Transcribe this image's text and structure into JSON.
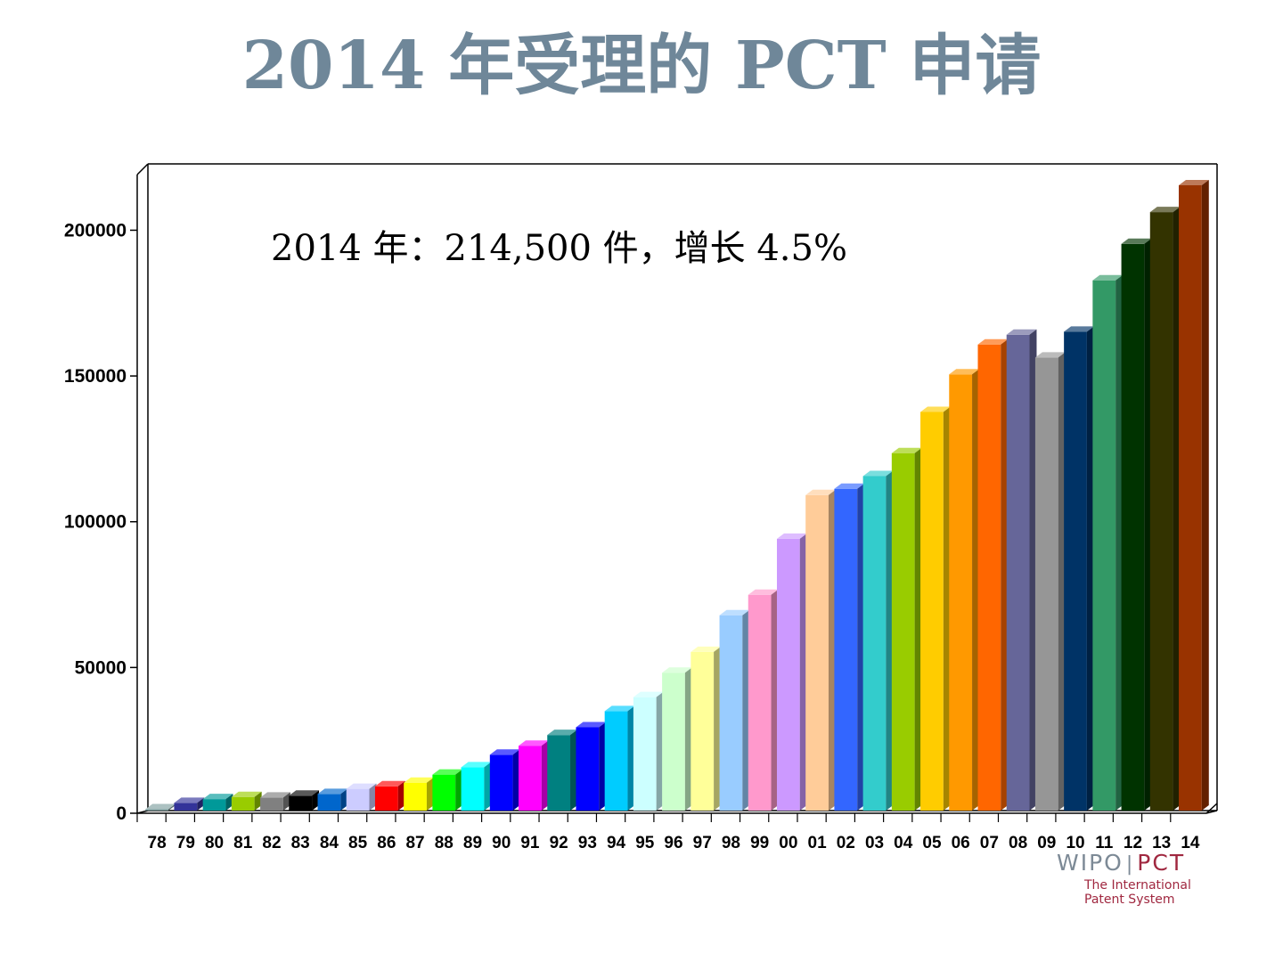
{
  "slide": {
    "title": "2014 年受理的 PCT 申请"
  },
  "logo": {
    "wipo": "WIPO",
    "separator": "|",
    "pct": "PCT",
    "subtitle_line1": "The International",
    "subtitle_line2": "Patent System"
  },
  "chart_data": {
    "type": "bar",
    "title": "",
    "xlabel": "",
    "ylabel": "",
    "ylim": [
      0,
      220000
    ],
    "yticks": [
      0,
      50000,
      100000,
      150000,
      200000
    ],
    "ytick_labels": [
      "0",
      "50000",
      "100000",
      "150000",
      "200000"
    ],
    "annotation": "2014 年：214,500 件，增长 4.5%",
    "grid": false,
    "legend": "none",
    "style": "3d",
    "categories": [
      "78",
      "79",
      "80",
      "81",
      "82",
      "83",
      "84",
      "85",
      "86",
      "87",
      "88",
      "89",
      "90",
      "91",
      "92",
      "93",
      "94",
      "95",
      "96",
      "97",
      "98",
      "99",
      "00",
      "01",
      "02",
      "03",
      "04",
      "05",
      "06",
      "07",
      "08",
      "09",
      "10",
      "11",
      "12",
      "13",
      "14"
    ],
    "values": [
      459,
      2625,
      3939,
      4675,
      4451,
      5102,
      5684,
      7445,
      8321,
      9566,
      12336,
      14874,
      19159,
      22247,
      25917,
      28577,
      34104,
      38906,
      47291,
      54422,
      67007,
      74023,
      93237,
      108228,
      110391,
      114733,
      122622,
      136746,
      149644,
      159886,
      163240,
      155406,
      164293,
      181900,
      194400,
      205300,
      214500
    ],
    "colors": [
      "#7f9f9f",
      "#333399",
      "#009999",
      "#99cc00",
      "#808080",
      "#000000",
      "#0066cc",
      "#ccccff",
      "#ff0000",
      "#ffff00",
      "#00ff00",
      "#00ffff",
      "#0000ff",
      "#ff00ff",
      "#008080",
      "#0000ff",
      "#00ccff",
      "#ccffff",
      "#ccffcc",
      "#ffff99",
      "#99ccff",
      "#ff99cc",
      "#cc99ff",
      "#ffcc99",
      "#3366ff",
      "#33cccc",
      "#99cc00",
      "#ffcc00",
      "#ff9900",
      "#ff6600",
      "#666699",
      "#969696",
      "#003366",
      "#339966",
      "#003300",
      "#333300",
      "#993300"
    ]
  }
}
